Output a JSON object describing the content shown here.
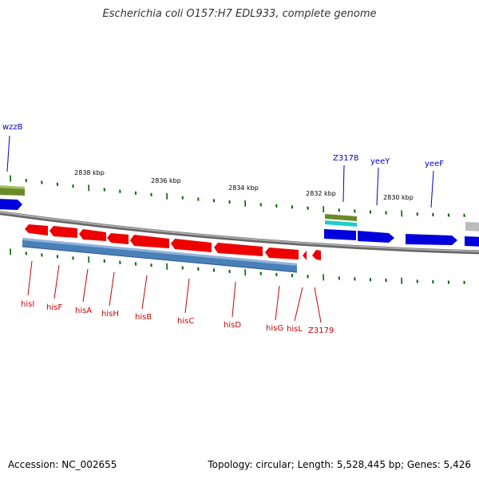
{
  "title": "Escherichia coli O157:H7 EDL933, complete genome",
  "footer": {
    "accession": "Accession: NC_002655",
    "summary": "Topology: circular; Length: 5,528,445 bp; Genes: 5,426"
  },
  "scale": {
    "tick_labels": [
      "2838 kbp",
      "2836 kbp",
      "2834 kbp",
      "2832 kbp",
      "2830 kbp"
    ]
  },
  "genes_reverse": [
    "hisI",
    "hisF",
    "hisA",
    "hisH",
    "hisB",
    "hisC",
    "hisD",
    "hisG",
    "hisL",
    "Z3179"
  ],
  "genes_forward": [
    "wzzB",
    "Z3178",
    "yeeY",
    "yeeF"
  ],
  "colors": {
    "forward_gene": "#0000dd",
    "reverse_gene": "#ee0000",
    "forward_label": "#0000cc",
    "reverse_label": "#cc0000",
    "tick": "#006600",
    "backbone": "#888888",
    "operon_band": "#4a80b8",
    "feature_green": "#6a8a2a",
    "feature_cyan": "#22cccc",
    "feature_gray": "#bbbbbb"
  }
}
